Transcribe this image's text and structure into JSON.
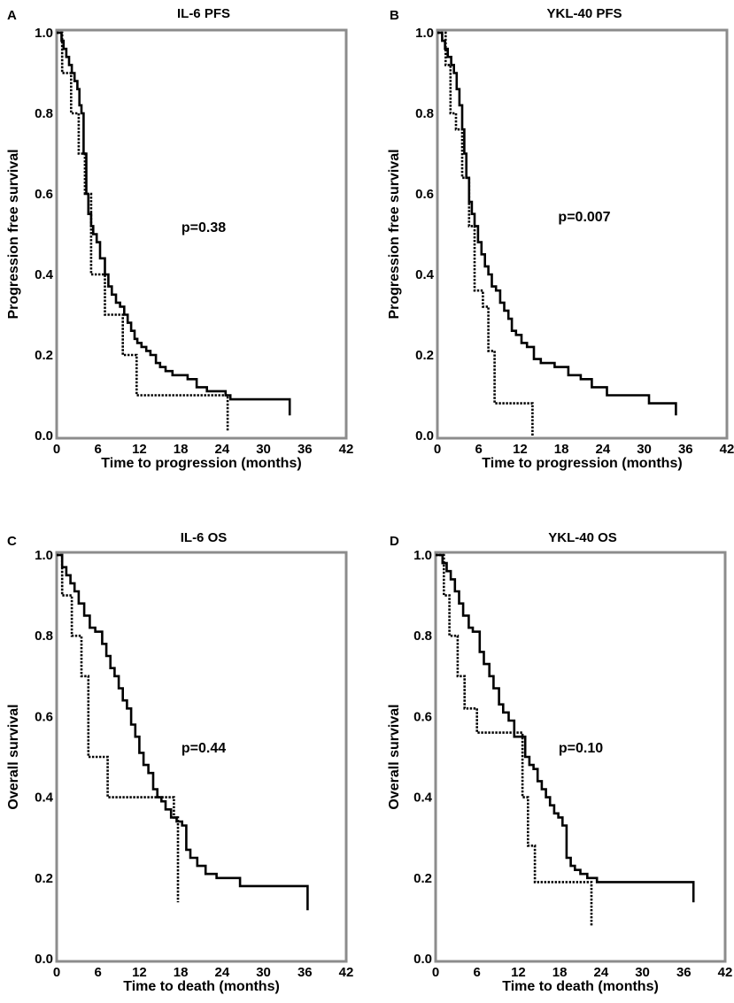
{
  "chart_data": [
    {
      "type": "line",
      "panel": "A",
      "title": "IL-6 PFS",
      "xlabel": "Time to progression (months)",
      "ylabel": "Progression free survival",
      "xlim": [
        0,
        42
      ],
      "ylim": [
        0,
        1
      ],
      "xticks": [
        "0",
        "6",
        "12",
        "18",
        "24",
        "30",
        "36",
        "42"
      ],
      "yticks": [
        "0.0",
        "0.2",
        "0.4",
        "0.6",
        "0.8",
        "1.0"
      ],
      "annotation": "p=0.38",
      "series": [
        {
          "name": "solid",
          "style": "solid",
          "x": [
            0,
            0.7,
            1.0,
            1.4,
            1.8,
            2.2,
            2.6,
            3.0,
            3.3,
            3.6,
            3.9,
            4.3,
            4.6,
            5.0,
            5.3,
            5.8,
            6.3,
            7.0,
            7.5,
            8.0,
            8.6,
            9.2,
            9.8,
            10.3,
            10.8,
            11.3,
            11.7,
            12.3,
            13.0,
            13.6,
            14.4,
            15.0,
            15.8,
            16.8,
            19.0,
            20.3,
            21.8,
            24.5,
            25.2,
            33.8,
            33.8
          ],
          "y": [
            1.0,
            0.98,
            0.96,
            0.94,
            0.92,
            0.9,
            0.88,
            0.86,
            0.82,
            0.8,
            0.7,
            0.6,
            0.55,
            0.52,
            0.5,
            0.48,
            0.44,
            0.4,
            0.37,
            0.35,
            0.33,
            0.32,
            0.3,
            0.28,
            0.26,
            0.24,
            0.23,
            0.22,
            0.21,
            0.2,
            0.18,
            0.17,
            0.16,
            0.15,
            0.14,
            0.12,
            0.11,
            0.1,
            0.09,
            0.07,
            0.05
          ]
        },
        {
          "name": "dotted",
          "style": "dotted",
          "x": [
            0,
            0.8,
            2.1,
            3.2,
            4.1,
            5.0,
            7.0,
            9.6,
            11.6,
            24.8,
            24.8
          ],
          "y": [
            1.0,
            0.9,
            0.8,
            0.7,
            0.6,
            0.4,
            0.3,
            0.2,
            0.1,
            0.1,
            0.01
          ]
        }
      ]
    },
    {
      "type": "line",
      "panel": "B",
      "title": "YKL-40 PFS",
      "xlabel": "Time to progression (months)",
      "ylabel": "Progression free survival",
      "xlim": [
        0,
        42
      ],
      "ylim": [
        0,
        1
      ],
      "xticks": [
        "0",
        "6",
        "12",
        "18",
        "24",
        "30",
        "36",
        "42"
      ],
      "yticks": [
        "0.0",
        "0.2",
        "0.4",
        "0.6",
        "0.8",
        "1.0"
      ],
      "annotation": "p=0.007",
      "series": [
        {
          "name": "solid",
          "style": "solid",
          "x": [
            0,
            0.7,
            1.1,
            1.5,
            2.0,
            2.4,
            2.8,
            3.2,
            3.6,
            3.9,
            4.2,
            4.6,
            5.0,
            5.4,
            5.9,
            6.4,
            6.9,
            7.4,
            7.9,
            8.5,
            9.1,
            9.7,
            10.3,
            10.8,
            11.4,
            12.2,
            13.0,
            14.0,
            15.0,
            17.0,
            19.0,
            20.8,
            22.4,
            24.6,
            30.7,
            34.6,
            34.6
          ],
          "y": [
            1.0,
            0.98,
            0.96,
            0.94,
            0.92,
            0.9,
            0.86,
            0.82,
            0.76,
            0.7,
            0.64,
            0.58,
            0.55,
            0.52,
            0.48,
            0.45,
            0.42,
            0.4,
            0.37,
            0.36,
            0.33,
            0.31,
            0.29,
            0.26,
            0.25,
            0.23,
            0.22,
            0.19,
            0.18,
            0.17,
            0.15,
            0.14,
            0.12,
            0.1,
            0.08,
            0.06,
            0.05
          ]
        },
        {
          "name": "dotted",
          "style": "dotted",
          "x": [
            0,
            1.2,
            1.9,
            2.7,
            3.6,
            4.6,
            5.4,
            6.6,
            7.4,
            8.3,
            13.8,
            13.8
          ],
          "y": [
            1.0,
            0.92,
            0.8,
            0.76,
            0.64,
            0.52,
            0.36,
            0.32,
            0.21,
            0.08,
            0.08,
            0.0
          ]
        }
      ]
    },
    {
      "type": "line",
      "panel": "C",
      "title": "IL-6 OS",
      "xlabel": "Time to death (months)",
      "ylabel": "Overall survival",
      "xlim": [
        0,
        42
      ],
      "ylim": [
        0,
        1
      ],
      "xticks": [
        "0",
        "6",
        "12",
        "18",
        "24",
        "30",
        "36",
        "42"
      ],
      "yticks": [
        "0.0",
        "0.2",
        "0.4",
        "0.6",
        "0.8",
        "1.0"
      ],
      "annotation": "p=0.44",
      "series": [
        {
          "name": "solid",
          "style": "solid",
          "x": [
            0,
            0.8,
            1.4,
            2.0,
            2.6,
            3.2,
            4.0,
            4.8,
            5.6,
            6.6,
            7.2,
            7.8,
            8.4,
            9.0,
            9.6,
            10.2,
            10.8,
            11.4,
            12.0,
            12.6,
            13.3,
            14.0,
            14.6,
            15.2,
            15.8,
            16.6,
            17.4,
            18.2,
            18.8,
            19.4,
            20.4,
            21.6,
            23.2,
            26.6,
            36.4,
            36.4
          ],
          "y": [
            1.0,
            0.97,
            0.95,
            0.93,
            0.91,
            0.88,
            0.85,
            0.82,
            0.81,
            0.78,
            0.75,
            0.72,
            0.7,
            0.67,
            0.64,
            0.62,
            0.58,
            0.55,
            0.51,
            0.48,
            0.46,
            0.42,
            0.4,
            0.39,
            0.37,
            0.35,
            0.34,
            0.33,
            0.27,
            0.25,
            0.23,
            0.21,
            0.2,
            0.18,
            0.18,
            0.12
          ]
        },
        {
          "name": "dotted",
          "style": "dotted",
          "x": [
            0,
            0.8,
            2.2,
            3.6,
            4.6,
            7.4,
            16.4,
            17.0,
            17.6,
            17.6
          ],
          "y": [
            1.0,
            0.9,
            0.8,
            0.7,
            0.5,
            0.4,
            0.4,
            0.35,
            0.27,
            0.14
          ]
        }
      ]
    },
    {
      "type": "line",
      "panel": "D",
      "title": "YKL-40 OS",
      "xlabel": "Time to death (months)",
      "ylabel": "Overall survival",
      "xlim": [
        0,
        42
      ],
      "ylim": [
        0,
        1
      ],
      "xticks": [
        "0",
        "6",
        "12",
        "18",
        "24",
        "30",
        "36",
        "42"
      ],
      "yticks": [
        "0.0",
        "0.2",
        "0.4",
        "0.6",
        "0.8",
        "1.0"
      ],
      "annotation": "p=0.10",
      "series": [
        {
          "name": "solid",
          "style": "solid",
          "x": [
            0,
            1.0,
            1.6,
            2.2,
            2.8,
            3.4,
            4.0,
            4.8,
            5.4,
            6.4,
            7.0,
            7.8,
            8.4,
            9.2,
            9.8,
            10.6,
            11.4,
            12.2,
            13.0,
            13.6,
            14.2,
            14.8,
            15.4,
            16.0,
            16.6,
            17.2,
            17.8,
            18.4,
            19.0,
            19.6,
            20.2,
            21.0,
            22.0,
            23.4,
            26.4,
            37.4,
            37.4
          ],
          "y": [
            1.0,
            0.98,
            0.96,
            0.94,
            0.91,
            0.88,
            0.85,
            0.82,
            0.81,
            0.76,
            0.73,
            0.7,
            0.67,
            0.63,
            0.61,
            0.59,
            0.55,
            0.55,
            0.5,
            0.48,
            0.47,
            0.44,
            0.42,
            0.4,
            0.38,
            0.36,
            0.35,
            0.33,
            0.25,
            0.23,
            0.22,
            0.21,
            0.2,
            0.19,
            0.19,
            0.19,
            0.14
          ]
        },
        {
          "name": "dotted",
          "style": "dotted",
          "x": [
            0,
            1.2,
            2.0,
            3.2,
            4.2,
            6.0,
            11.2,
            12.6,
            13.4,
            14.4,
            22.6,
            22.6
          ],
          "y": [
            1.0,
            0.9,
            0.8,
            0.7,
            0.62,
            0.56,
            0.56,
            0.4,
            0.28,
            0.19,
            0.19,
            0.08
          ]
        }
      ]
    }
  ]
}
